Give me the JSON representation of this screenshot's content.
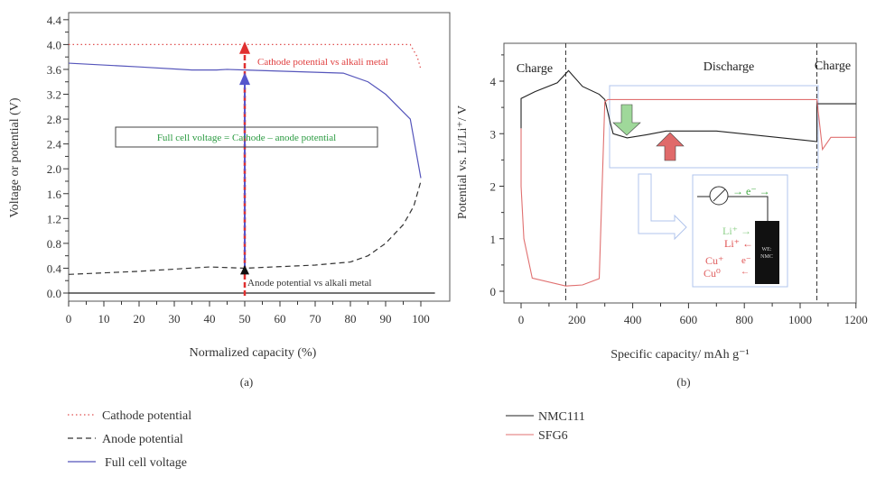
{
  "chart_data": [
    {
      "type": "line",
      "panel_label": "(a)",
      "xlabel": "Normalized capacity (%)",
      "ylabel": "Voltage or potential (V)",
      "xlim": [
        0,
        105
      ],
      "ylim": [
        0,
        4.4
      ],
      "xticks": [
        0,
        10,
        20,
        30,
        40,
        50,
        60,
        70,
        80,
        90,
        100
      ],
      "yticks": [
        "0.0",
        "0.4",
        "0.8",
        "1.2",
        "1.6",
        "2.0",
        "2.4",
        "2.8",
        "3.2",
        "3.6",
        "4.0",
        "4.4"
      ],
      "series": [
        {
          "name": "Cathode potential",
          "color": "#e05050",
          "style": "dotted",
          "points": [
            [
              0,
              4.0
            ],
            [
              97,
              4.0
            ],
            [
              99,
              3.8
            ],
            [
              100,
              3.6
            ]
          ]
        },
        {
          "name": "Anode potential",
          "color": "#333333",
          "style": "dashed",
          "points": [
            [
              0,
              0.3
            ],
            [
              20,
              0.35
            ],
            [
              40,
              0.42
            ],
            [
              50,
              0.4
            ],
            [
              70,
              0.45
            ],
            [
              80,
              0.5
            ],
            [
              85,
              0.6
            ],
            [
              90,
              0.8
            ],
            [
              95,
              1.1
            ],
            [
              98,
              1.4
            ],
            [
              100,
              1.8
            ]
          ]
        },
        {
          "name": "Full cell voltage",
          "color": "#5555bb",
          "style": "solid",
          "points": [
            [
              0,
              3.7
            ],
            [
              20,
              3.64
            ],
            [
              35,
              3.59
            ],
            [
              42,
              3.59
            ],
            [
              45,
              3.6
            ],
            [
              50,
              3.59
            ],
            [
              78,
              3.54
            ],
            [
              85,
              3.4
            ],
            [
              90,
              3.2
            ],
            [
              97,
              2.8
            ],
            [
              100,
              1.85
            ]
          ]
        }
      ],
      "annotations": {
        "cathode": "Cathode potential vs alkali metal",
        "anode": "Anode potential vs alkali metal",
        "box": "Full cell voltage = Cathode – anode potential"
      },
      "arrow_x": 50
    },
    {
      "type": "line",
      "panel_label": "(b)",
      "xlabel": "Specific capacity/ mAh g⁻¹",
      "ylabel": "Potential vs. Li/Li⁺/ V",
      "xlim": [
        -60,
        1200
      ],
      "ylim": [
        -0.2,
        4.7
      ],
      "xticks": [
        0,
        200,
        400,
        600,
        800,
        1000,
        1200
      ],
      "yticks": [
        0,
        1,
        2,
        3,
        4
      ],
      "series": [
        {
          "name": "NMC111",
          "color": "#222222",
          "points": [
            [
              0,
              3.1
            ],
            [
              0,
              3.67
            ],
            [
              50,
              3.8
            ],
            [
              130,
              3.97
            ],
            [
              170,
              4.2
            ],
            [
              220,
              3.9
            ],
            [
              280,
              3.75
            ],
            [
              300,
              3.65
            ],
            [
              320,
              3.2
            ],
            [
              330,
              3.0
            ],
            [
              380,
              2.92
            ],
            [
              450,
              2.98
            ],
            [
              520,
              3.05
            ],
            [
              700,
              3.05
            ],
            [
              1060,
              2.85
            ],
            [
              1060,
              3.57
            ],
            [
              1200,
              3.57
            ]
          ]
        },
        {
          "name": "SFG6",
          "color": "#e07070",
          "points": [
            [
              0,
              3.1
            ],
            [
              0,
              2.0
            ],
            [
              10,
              1.0
            ],
            [
              40,
              0.25
            ],
            [
              160,
              0.1
            ],
            [
              220,
              0.12
            ],
            [
              280,
              0.24
            ],
            [
              300,
              3.6
            ],
            [
              310,
              3.65
            ],
            [
              1060,
              3.65
            ],
            [
              1080,
              2.7
            ],
            [
              1110,
              2.93
            ],
            [
              1200,
              2.93
            ]
          ]
        }
      ],
      "dividers": [
        160,
        1060
      ],
      "regions": [
        "Charge",
        "Discharge",
        "Charge"
      ],
      "inset": {
        "electrode": [
          "WE:",
          "NMC"
        ],
        "e": "e⁻",
        "li_green": "Li⁺",
        "li_red": "Li⁺",
        "cu_plus": "Cu⁺",
        "cu0": "Cu⁰",
        "e2": "e⁻"
      }
    }
  ]
}
